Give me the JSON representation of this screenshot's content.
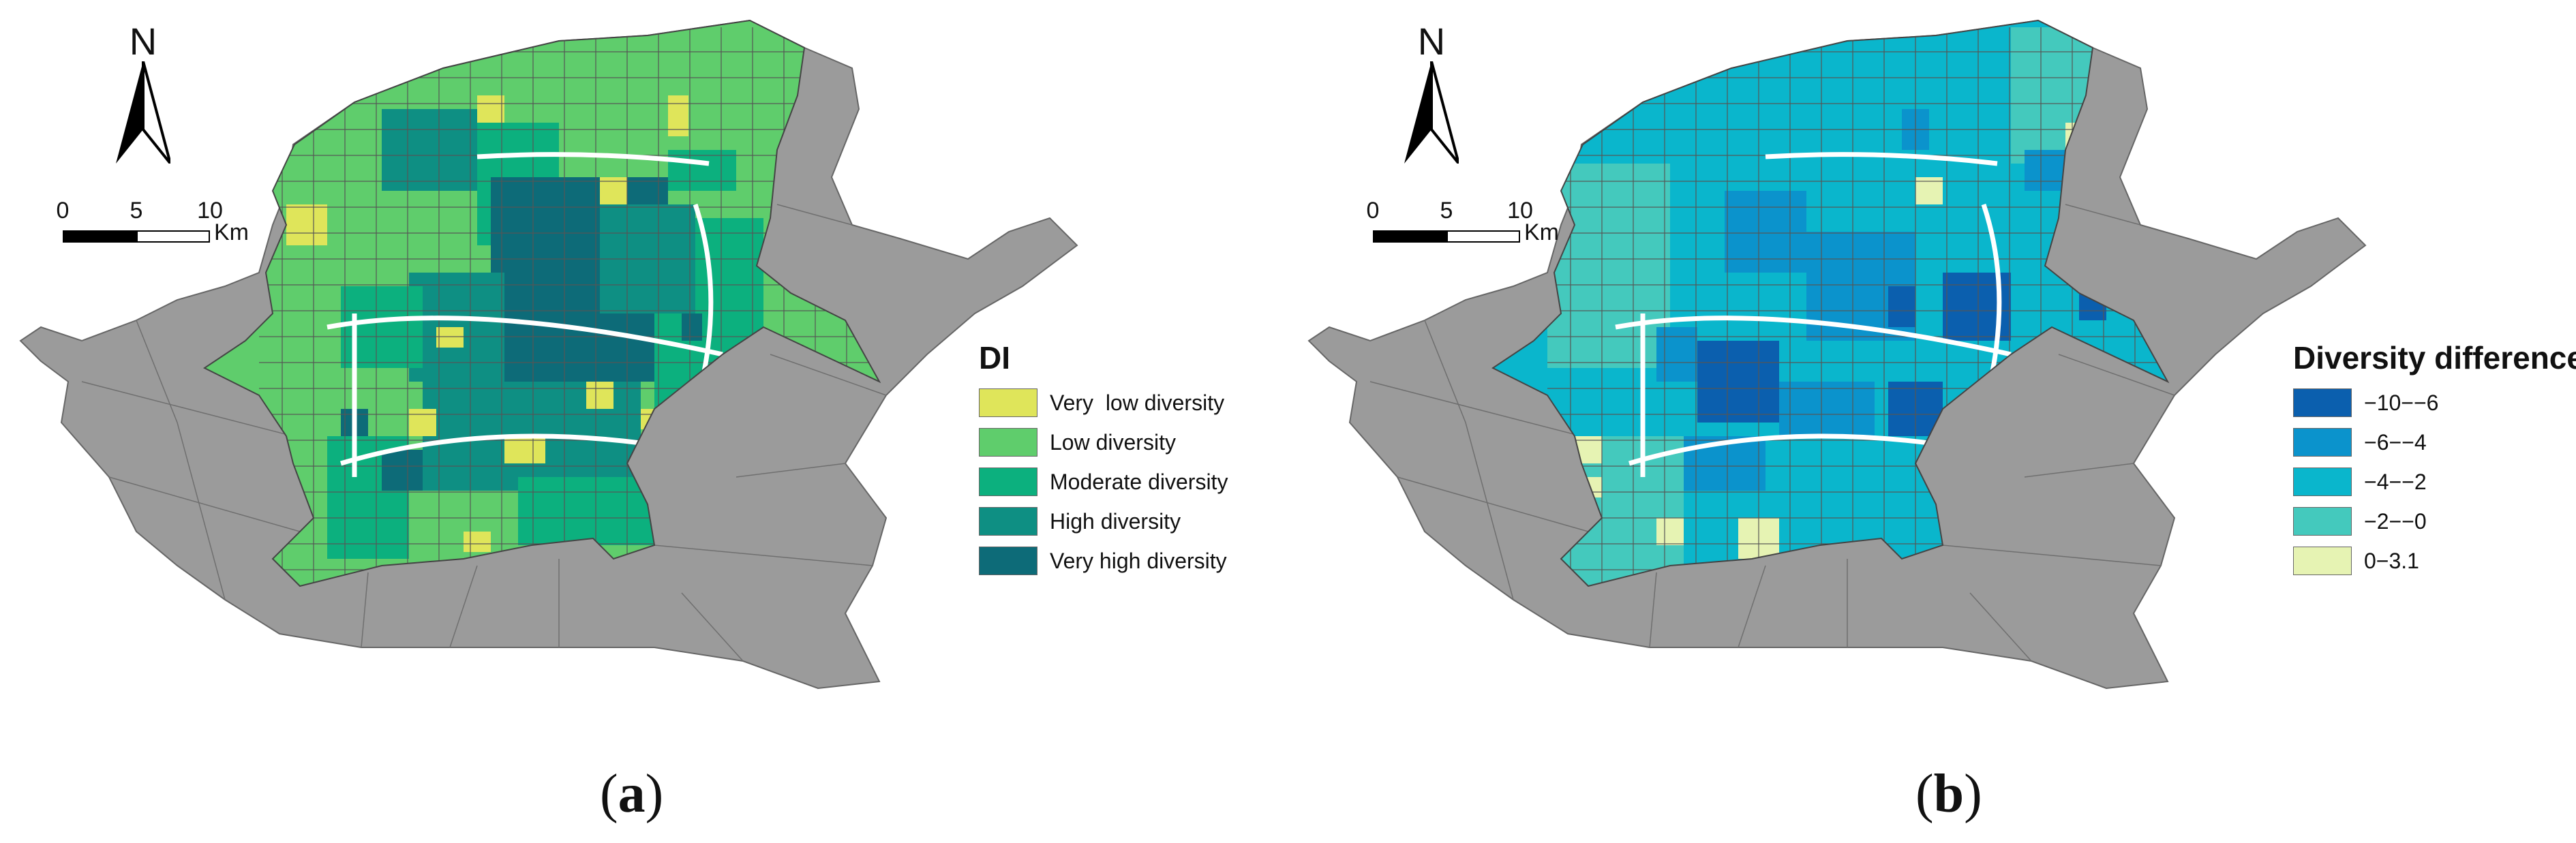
{
  "panels": [
    {
      "id": "a",
      "caption": "a",
      "north_label": "N",
      "scale": {
        "ticks": [
          "0",
          "5",
          "10"
        ],
        "unit": "Km"
      },
      "legend": {
        "title": "DI",
        "items": [
          {
            "label": "Very  low diversity",
            "color": "#dfe55a"
          },
          {
            "label": "Low diversity",
            "color": "#5fcd6c"
          },
          {
            "label": "Moderate diversity",
            "color": "#0cb07e"
          },
          {
            "label": "High diversity",
            "color": "#0e8f83"
          },
          {
            "label": "Very high diversity",
            "color": "#0d6b78"
          }
        ]
      }
    },
    {
      "id": "b",
      "caption": "b",
      "north_label": "N",
      "scale": {
        "ticks": [
          "0",
          "5",
          "10"
        ],
        "unit": "Km"
      },
      "legend": {
        "title": "Diversity difference",
        "items": [
          {
            "label": "−10−−6",
            "color": "#0b5fae"
          },
          {
            "label": "−6−−4",
            "color": "#0b93cc"
          },
          {
            "label": "−4−−2",
            "color": "#0ab6cc"
          },
          {
            "label": "−2−−0",
            "color": "#44c9bd"
          },
          {
            "label": "0−3.1",
            "color": "#e6f3b3"
          }
        ]
      }
    }
  ],
  "colors": {
    "outer_region": "#9b9b9b",
    "boundary": "#555555",
    "road": "#ffffff"
  }
}
